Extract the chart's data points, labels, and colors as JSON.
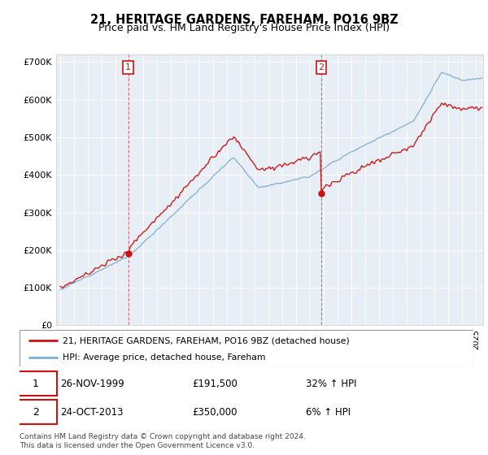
{
  "title": "21, HERITAGE GARDENS, FAREHAM, PO16 9BZ",
  "subtitle": "Price paid vs. HM Land Registry's House Price Index (HPI)",
  "hpi_color": "#7bafd4",
  "price_color": "#cc1111",
  "ylim": [
    0,
    720000
  ],
  "yticks": [
    0,
    100000,
    200000,
    300000,
    400000,
    500000,
    600000,
    700000
  ],
  "xlim_start": 1994.7,
  "xlim_end": 2025.5,
  "purchase1_x": 1999.9,
  "purchase1_y": 191500,
  "purchase2_x": 2013.83,
  "purchase2_y": 350000,
  "legend_label_price": "21, HERITAGE GARDENS, FAREHAM, PO16 9BZ (detached house)",
  "legend_label_hpi": "HPI: Average price, detached house, Fareham",
  "note1_date": "26-NOV-1999",
  "note1_price": "£191,500",
  "note1_hpi": "32% ↑ HPI",
  "note2_date": "24-OCT-2013",
  "note2_price": "£350,000",
  "note2_hpi": "6% ↑ HPI",
  "footer": "Contains HM Land Registry data © Crown copyright and database right 2024.\nThis data is licensed under the Open Government Licence v3.0."
}
